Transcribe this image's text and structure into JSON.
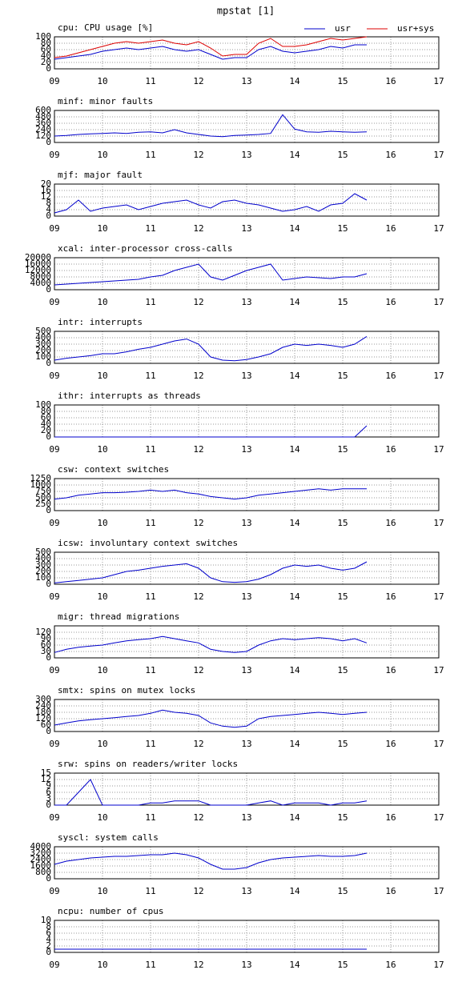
{
  "title": "mpstat [1]",
  "chart_data": [
    {
      "type": "line",
      "title": "cpu: CPU usage [%]",
      "legend": "upper right",
      "x": [
        9,
        9.25,
        9.5,
        9.75,
        10,
        10.25,
        10.5,
        10.75,
        11,
        11.25,
        11.5,
        11.75,
        12,
        12.25,
        12.5,
        12.75,
        13,
        13.25,
        13.5,
        13.75,
        14,
        14.25,
        14.5,
        14.75,
        15,
        15.25,
        15.5
      ],
      "xlim": [
        9,
        17
      ],
      "xticks": [
        {
          "value": 9,
          "label": "09"
        },
        10,
        11,
        12,
        13,
        14,
        15,
        16,
        17
      ],
      "ylim": [
        0,
        100
      ],
      "yticks": [
        0,
        20,
        40,
        60,
        80,
        100
      ],
      "grid": true,
      "series": [
        {
          "name": "usr",
          "color": "#0000cc",
          "values": [
            30,
            35,
            40,
            45,
            55,
            60,
            65,
            60,
            65,
            70,
            60,
            55,
            60,
            45,
            30,
            35,
            35,
            60,
            70,
            55,
            50,
            55,
            60,
            70,
            65,
            75,
            75
          ]
        },
        {
          "name": "usr+sys",
          "color": "#dd0000",
          "values": [
            35,
            40,
            50,
            60,
            70,
            80,
            85,
            80,
            85,
            90,
            80,
            75,
            85,
            65,
            40,
            45,
            45,
            80,
            95,
            70,
            70,
            75,
            85,
            95,
            90,
            95,
            100
          ]
        }
      ]
    },
    {
      "type": "line",
      "title": "minf: minor faults",
      "x": [
        9,
        9.25,
        9.5,
        9.75,
        10,
        10.25,
        10.5,
        10.75,
        11,
        11.25,
        11.5,
        11.75,
        12,
        12.25,
        12.5,
        12.75,
        13,
        13.25,
        13.5,
        13.75,
        14,
        14.25,
        14.5,
        14.75,
        15,
        15.25,
        15.5
      ],
      "xlim": [
        9,
        17
      ],
      "xticks": [
        {
          "value": 9,
          "label": "09"
        },
        10,
        11,
        12,
        13,
        14,
        15,
        16,
        17
      ],
      "ylim": [
        0,
        600
      ],
      "yticks": [
        0,
        120,
        240,
        360,
        480,
        600
      ],
      "grid": true,
      "color": "#0000cc",
      "values": [
        120,
        130,
        150,
        160,
        170,
        180,
        170,
        190,
        200,
        180,
        240,
        180,
        150,
        120,
        110,
        130,
        140,
        150,
        170,
        520,
        250,
        200,
        190,
        210,
        200,
        190,
        200
      ]
    },
    {
      "type": "line",
      "title": "mjf: major fault",
      "x": [
        9,
        9.25,
        9.5,
        9.75,
        10,
        10.25,
        10.5,
        10.75,
        11,
        11.25,
        11.5,
        11.75,
        12,
        12.25,
        12.5,
        12.75,
        13,
        13.25,
        13.5,
        13.75,
        14,
        14.25,
        14.5,
        14.75,
        15,
        15.25,
        15.5
      ],
      "xlim": [
        9,
        17
      ],
      "xticks": [
        {
          "value": 9,
          "label": "09"
        },
        10,
        11,
        12,
        13,
        14,
        15,
        16,
        17
      ],
      "ylim": [
        0,
        20
      ],
      "yticks": [
        0,
        4,
        8,
        12,
        16,
        20
      ],
      "grid": true,
      "color": "#0000cc",
      "values": [
        2,
        4,
        10,
        3,
        5,
        6,
        7,
        4,
        6,
        8,
        9,
        10,
        7,
        5,
        9,
        10,
        8,
        7,
        5,
        3,
        4,
        6,
        3,
        7,
        8,
        14,
        10
      ]
    },
    {
      "type": "line",
      "title": "xcal: inter-processor cross-calls",
      "x": [
        9,
        9.25,
        9.5,
        9.75,
        10,
        10.25,
        10.5,
        10.75,
        11,
        11.25,
        11.5,
        11.75,
        12,
        12.25,
        12.5,
        12.75,
        13,
        13.25,
        13.5,
        13.75,
        14,
        14.25,
        14.5,
        14.75,
        15,
        15.25,
        15.5
      ],
      "xlim": [
        9,
        17
      ],
      "xticks": [
        {
          "value": 9,
          "label": "09"
        },
        10,
        11,
        12,
        13,
        14,
        15,
        16,
        17
      ],
      "ylim": [
        0,
        20000
      ],
      "yticks": [
        0,
        4000,
        8000,
        12000,
        16000,
        20000
      ],
      "grid": true,
      "color": "#0000cc",
      "values": [
        3000,
        3500,
        4000,
        4500,
        5000,
        5500,
        6000,
        6500,
        8000,
        9000,
        12000,
        14000,
        16000,
        8000,
        6000,
        9000,
        12000,
        14000,
        16000,
        6000,
        7000,
        8000,
        7500,
        7000,
        8000,
        8000,
        10000
      ]
    },
    {
      "type": "line",
      "title": "intr: interrupts",
      "x": [
        9,
        9.25,
        9.5,
        9.75,
        10,
        10.25,
        10.5,
        10.75,
        11,
        11.25,
        11.5,
        11.75,
        12,
        12.25,
        12.5,
        12.75,
        13,
        13.25,
        13.5,
        13.75,
        14,
        14.25,
        14.5,
        14.75,
        15,
        15.25,
        15.5
      ],
      "xlim": [
        9,
        17
      ],
      "xticks": [
        {
          "value": 9,
          "label": "09"
        },
        10,
        11,
        12,
        13,
        14,
        15,
        16,
        17
      ],
      "ylim": [
        0,
        500
      ],
      "yticks": [
        0,
        100,
        200,
        300,
        400,
        500
      ],
      "grid": true,
      "color": "#0000cc",
      "values": [
        50,
        80,
        100,
        120,
        150,
        150,
        180,
        220,
        250,
        300,
        350,
        380,
        300,
        100,
        50,
        40,
        60,
        100,
        150,
        250,
        300,
        280,
        300,
        280,
        250,
        300,
        420
      ]
    },
    {
      "type": "line",
      "title": "ithr: interrupts as threads",
      "x": [
        9,
        9.25,
        9.5,
        9.75,
        10,
        10.25,
        10.5,
        10.75,
        11,
        11.25,
        11.5,
        11.75,
        12,
        12.25,
        12.5,
        12.75,
        13,
        13.25,
        13.5,
        13.75,
        14,
        14.25,
        14.5,
        14.75,
        15,
        15.25,
        15.5
      ],
      "xlim": [
        9,
        17
      ],
      "xticks": [
        {
          "value": 9,
          "label": "09"
        },
        10,
        11,
        12,
        13,
        14,
        15,
        16,
        17
      ],
      "ylim": [
        0,
        100
      ],
      "yticks": [
        0,
        20,
        40,
        60,
        80,
        100
      ],
      "grid": true,
      "color": "#0000cc",
      "values": [
        0,
        0,
        0,
        0,
        0,
        0,
        0,
        0,
        0,
        0,
        0,
        0,
        0,
        0,
        0,
        0,
        0,
        0,
        0,
        0,
        0,
        0,
        0,
        0,
        0,
        0,
        35
      ]
    },
    {
      "type": "line",
      "title": "csw: context switches",
      "x": [
        9,
        9.25,
        9.5,
        9.75,
        10,
        10.25,
        10.5,
        10.75,
        11,
        11.25,
        11.5,
        11.75,
        12,
        12.25,
        12.5,
        12.75,
        13,
        13.25,
        13.5,
        13.75,
        14,
        14.25,
        14.5,
        14.75,
        15,
        15.25,
        15.5
      ],
      "xlim": [
        9,
        17
      ],
      "xticks": [
        {
          "value": 9,
          "label": "09"
        },
        10,
        11,
        12,
        13,
        14,
        15,
        16,
        17
      ],
      "ylim": [
        0,
        1250
      ],
      "yticks": [
        0,
        250,
        500,
        750,
        1000,
        1250
      ],
      "grid": true,
      "color": "#0000cc",
      "values": [
        450,
        500,
        600,
        650,
        700,
        700,
        720,
        750,
        800,
        750,
        800,
        700,
        650,
        550,
        500,
        450,
        500,
        600,
        650,
        700,
        750,
        800,
        850,
        800,
        850,
        850,
        850
      ]
    },
    {
      "type": "line",
      "title": "icsw: involuntary context switches",
      "x": [
        9,
        9.25,
        9.5,
        9.75,
        10,
        10.25,
        10.5,
        10.75,
        11,
        11.25,
        11.5,
        11.75,
        12,
        12.25,
        12.5,
        12.75,
        13,
        13.25,
        13.5,
        13.75,
        14,
        14.25,
        14.5,
        14.75,
        15,
        15.25,
        15.5
      ],
      "xlim": [
        9,
        17
      ],
      "xticks": [
        {
          "value": 9,
          "label": "09"
        },
        10,
        11,
        12,
        13,
        14,
        15,
        16,
        17
      ],
      "ylim": [
        0,
        500
      ],
      "yticks": [
        0,
        100,
        200,
        300,
        400,
        500
      ],
      "grid": true,
      "color": "#0000cc",
      "values": [
        20,
        40,
        60,
        80,
        100,
        150,
        200,
        220,
        250,
        280,
        300,
        320,
        250,
        100,
        40,
        30,
        40,
        80,
        150,
        250,
        300,
        280,
        300,
        250,
        220,
        250,
        350
      ]
    },
    {
      "type": "line",
      "title": "migr: thread migrations",
      "x": [
        9,
        9.25,
        9.5,
        9.75,
        10,
        10.25,
        10.5,
        10.75,
        11,
        11.25,
        11.5,
        11.75,
        12,
        12.25,
        12.5,
        12.75,
        13,
        13.25,
        13.5,
        13.75,
        14,
        14.25,
        14.5,
        14.75,
        15,
        15.25,
        15.5
      ],
      "xlim": [
        9,
        17
      ],
      "xticks": [
        {
          "value": 9,
          "label": "09"
        },
        10,
        11,
        12,
        13,
        14,
        15,
        16,
        17
      ],
      "ylim": [
        0,
        150
      ],
      "yticks": [
        0,
        30,
        60,
        90,
        120
      ],
      "grid": true,
      "color": "#0000cc",
      "values": [
        25,
        40,
        50,
        55,
        60,
        70,
        80,
        85,
        90,
        100,
        90,
        80,
        70,
        40,
        30,
        25,
        30,
        60,
        80,
        90,
        85,
        90,
        95,
        90,
        80,
        90,
        70
      ]
    },
    {
      "type": "line",
      "title": "smtx: spins on mutex locks",
      "x": [
        9,
        9.25,
        9.5,
        9.75,
        10,
        10.25,
        10.5,
        10.75,
        11,
        11.25,
        11.5,
        11.75,
        12,
        12.25,
        12.5,
        12.75,
        13,
        13.25,
        13.5,
        13.75,
        14,
        14.25,
        14.5,
        14.75,
        15,
        15.25,
        15.5
      ],
      "xlim": [
        9,
        17
      ],
      "xticks": [
        {
          "value": 9,
          "label": "09"
        },
        10,
        11,
        12,
        13,
        14,
        15,
        16,
        17
      ],
      "ylim": [
        0,
        300
      ],
      "yticks": [
        0,
        60,
        120,
        180,
        240,
        300
      ],
      "grid": true,
      "color": "#0000cc",
      "values": [
        60,
        80,
        100,
        110,
        120,
        130,
        140,
        150,
        170,
        200,
        180,
        170,
        150,
        80,
        50,
        40,
        50,
        120,
        140,
        150,
        160,
        170,
        180,
        170,
        160,
        170,
        180
      ]
    },
    {
      "type": "line",
      "title": "srw: spins on readers/writer locks",
      "x": [
        9,
        9.25,
        9.5,
        9.75,
        10,
        10.25,
        10.5,
        10.75,
        11,
        11.25,
        11.5,
        11.75,
        12,
        12.25,
        12.5,
        12.75,
        13,
        13.25,
        13.5,
        13.75,
        14,
        14.25,
        14.5,
        14.75,
        15,
        15.25,
        15.5
      ],
      "xlim": [
        9,
        17
      ],
      "xticks": [
        {
          "value": 9,
          "label": "09"
        },
        10,
        11,
        12,
        13,
        14,
        15,
        16,
        17
      ],
      "ylim": [
        0,
        15
      ],
      "yticks": [
        0,
        3,
        6,
        9,
        12,
        15
      ],
      "grid": true,
      "color": "#0000cc",
      "values": [
        0,
        0,
        6,
        12,
        0,
        0,
        0,
        0,
        1,
        1,
        2,
        2,
        2,
        0,
        0,
        0,
        0,
        1,
        2,
        0,
        1,
        1,
        1,
        0,
        1,
        1,
        2
      ]
    },
    {
      "type": "line",
      "title": "syscl: system calls",
      "x": [
        9,
        9.25,
        9.5,
        9.75,
        10,
        10.25,
        10.5,
        10.75,
        11,
        11.25,
        11.5,
        11.75,
        12,
        12.25,
        12.5,
        12.75,
        13,
        13.25,
        13.5,
        13.75,
        14,
        14.25,
        14.5,
        14.75,
        15,
        15.25,
        15.5
      ],
      "xlim": [
        9,
        17
      ],
      "xticks": [
        {
          "value": 9,
          "label": "09"
        },
        10,
        11,
        12,
        13,
        14,
        15,
        16,
        17
      ],
      "ylim": [
        0,
        4000
      ],
      "yticks": [
        0,
        800,
        1600,
        2400,
        3200,
        4000
      ],
      "grid": true,
      "color": "#0000cc",
      "values": [
        1800,
        2200,
        2400,
        2600,
        2700,
        2800,
        2800,
        2900,
        3000,
        3000,
        3200,
        3000,
        2600,
        1800,
        1200,
        1200,
        1400,
        2000,
        2400,
        2600,
        2700,
        2800,
        2900,
        2800,
        2800,
        2900,
        3200
      ]
    },
    {
      "type": "line",
      "title": "ncpu: number of cpus",
      "x": [
        9,
        9.25,
        9.5,
        9.75,
        10,
        10.25,
        10.5,
        10.75,
        11,
        11.25,
        11.5,
        11.75,
        12,
        12.25,
        12.5,
        12.75,
        13,
        13.25,
        13.5,
        13.75,
        14,
        14.25,
        14.5,
        14.75,
        15,
        15.25,
        15.5
      ],
      "xlim": [
        9,
        17
      ],
      "xticks": [
        {
          "value": 9,
          "label": "09"
        },
        10,
        11,
        12,
        13,
        14,
        15,
        16,
        17
      ],
      "ylim": [
        0,
        10
      ],
      "yticks": [
        0,
        2,
        4,
        6,
        8,
        10
      ],
      "grid": true,
      "color": "#0000cc",
      "values": [
        1,
        1,
        1,
        1,
        1,
        1,
        1,
        1,
        1,
        1,
        1,
        1,
        1,
        1,
        1,
        1,
        1,
        1,
        1,
        1,
        1,
        1,
        1,
        1,
        1,
        1,
        1
      ]
    }
  ]
}
